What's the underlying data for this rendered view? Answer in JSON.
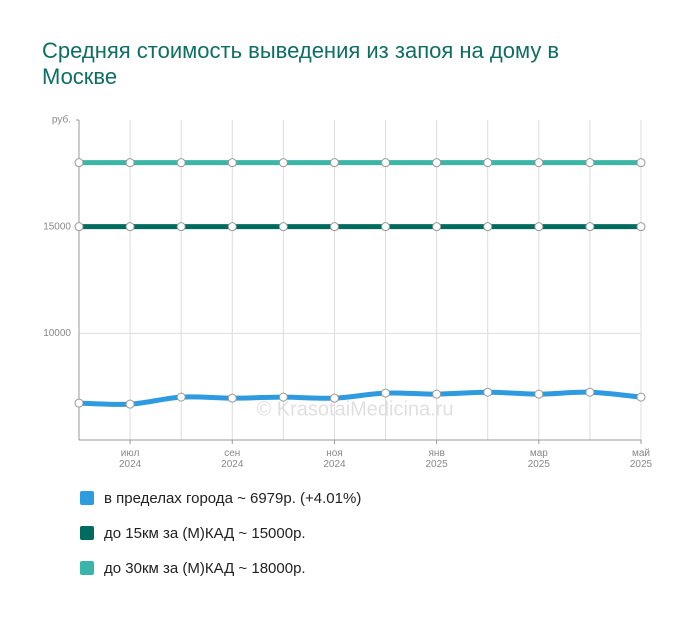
{
  "chart_data": {
    "type": "line",
    "title": "Средняя стоимость выведения из запоя на дому в Москве",
    "watermark": "© KrasotaiMedicina.ru",
    "categories": [
      null,
      "июл\n2024",
      null,
      "сен\n2024",
      null,
      "ноя\n2024",
      null,
      "янв\n2025",
      null,
      "мар\n2025",
      null,
      "май\n2025"
    ],
    "series": [
      {
        "name": "в пределах города ~ 6979р. (+4.01%)",
        "color": "#2e9be0",
        "values": [
          6730,
          6680,
          7010,
          6960,
          7010,
          6960,
          7200,
          7150,
          7240,
          7150,
          7240,
          7010
        ]
      },
      {
        "name": "до 15км за (М)КАД ~ 15000р.",
        "color": "#006b5e",
        "values": [
          15000,
          15000,
          15000,
          15000,
          15000,
          15000,
          15000,
          15000,
          15000,
          15000,
          15000,
          15000
        ]
      },
      {
        "name": "до 30км за (М)КАД ~ 18000р.",
        "color": "#3ab5a8",
        "values": [
          18000,
          18000,
          18000,
          18000,
          18000,
          18000,
          18000,
          18000,
          18000,
          18000,
          18000,
          18000
        ]
      }
    ],
    "ylim": [
      5000,
      20000
    ],
    "yticks": [
      10000,
      15000,
      {
        "value": 20000,
        "label": "руб."
      }
    ],
    "grid": true
  }
}
